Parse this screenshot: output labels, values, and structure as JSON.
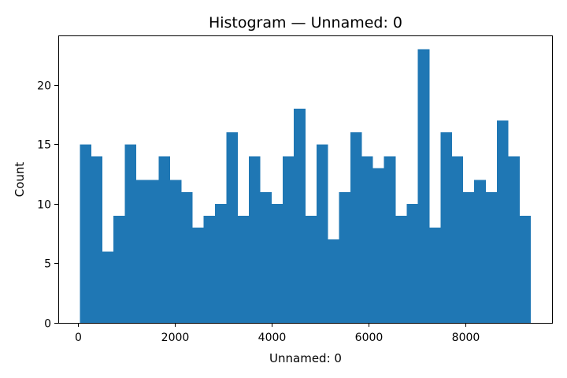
{
  "chart_data": {
    "type": "bar",
    "title": "Histogram — Unnamed: 0",
    "xlabel": "Unnamed: 0",
    "ylabel": "Count",
    "color": "#1f77b4",
    "bin_range": [
      43,
      9348
    ],
    "values": [
      15,
      14,
      6,
      9,
      15,
      12,
      12,
      14,
      12,
      11,
      8,
      9,
      10,
      16,
      9,
      14,
      11,
      10,
      14,
      18,
      9,
      15,
      7,
      11,
      16,
      14,
      13,
      14,
      9,
      10,
      23,
      8,
      16,
      14,
      11,
      12,
      11,
      17,
      14,
      9
    ],
    "xlim": [
      -400,
      9790
    ],
    "ylim": [
      0,
      24.15
    ],
    "xticks": [
      0,
      2000,
      4000,
      6000,
      8000
    ],
    "xtick_labels": [
      "0",
      "2000",
      "4000",
      "6000",
      "8000"
    ],
    "yticks": [
      0,
      5,
      10,
      15,
      20
    ],
    "ytick_labels": [
      "0",
      "5",
      "10",
      "15",
      "20"
    ],
    "grid": false,
    "legend": "none"
  }
}
